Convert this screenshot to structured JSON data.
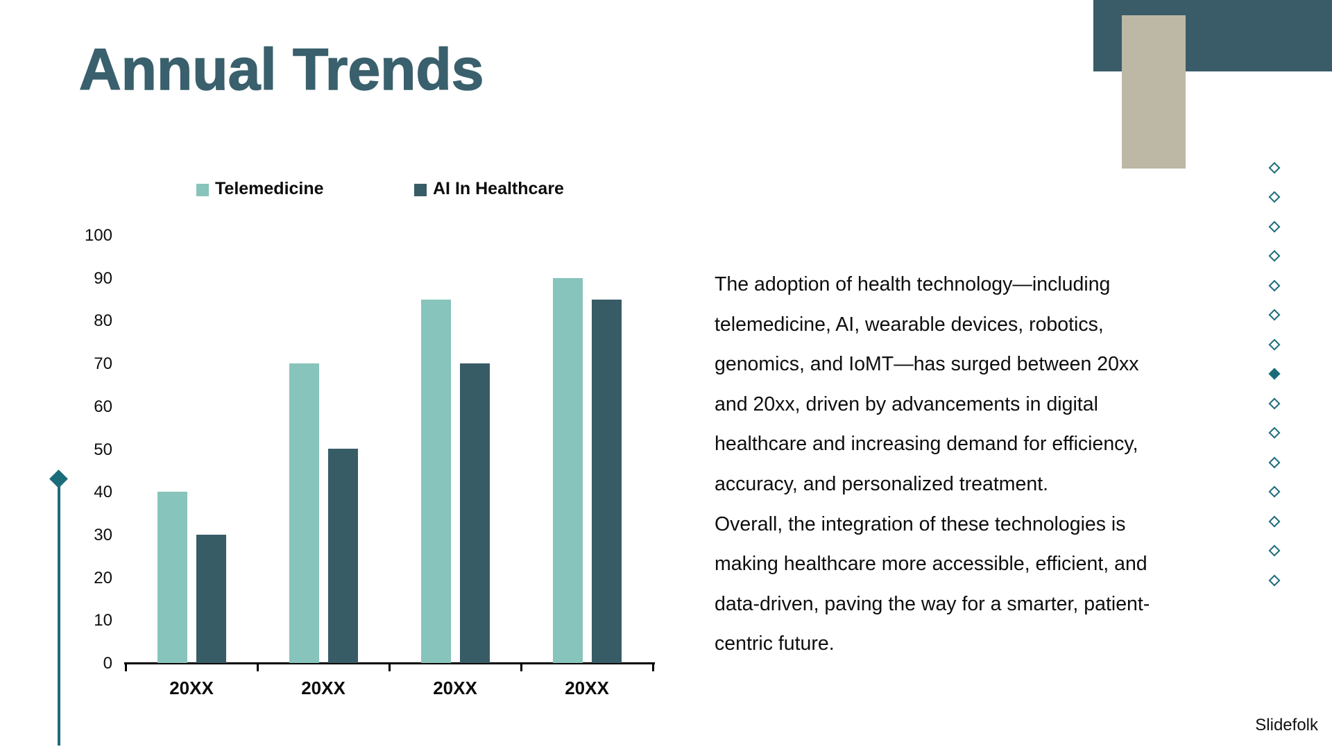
{
  "slide": {
    "title": "Annual Trends",
    "watermark": "Slidefolk"
  },
  "colors": {
    "title": "#39606C",
    "header_block": "#3A5B68",
    "beige_block": "#BCB8A5",
    "accent": "#1B6C7A",
    "text": "#0E0E0E",
    "axis": "#000000"
  },
  "chart_data": {
    "type": "bar",
    "title": "",
    "xlabel": "",
    "ylabel": "",
    "categories": [
      "20XX",
      "20XX",
      "20XX",
      "20XX"
    ],
    "series": [
      {
        "name": "Telemedicine",
        "color": "#87C4BB",
        "values": [
          40,
          70,
          85,
          90
        ]
      },
      {
        "name": "AI In Healthcare",
        "color": "#375C66",
        "values": [
          30,
          50,
          70,
          85
        ]
      }
    ],
    "ylim": [
      0,
      100
    ],
    "ytick_step": 10,
    "grid": false,
    "legend_position": "top"
  },
  "text_block": {
    "lines": [
      "The adoption of health technology—including",
      "telemedicine, AI, wearable devices, robotics,",
      "genomics, and IoMT—has surged between 20xx",
      "and 20xx, driven by advancements in digital",
      "healthcare and increasing demand for efficiency,",
      "accuracy, and personalized treatment.",
      "Overall, the integration of these technologies is",
      "making healthcare more accessible, efficient, and",
      "data-driven, paving the way for a smarter, patient-",
      "centric future."
    ]
  },
  "decor": {
    "right_diamond_count": 15,
    "right_diamond_filled_index": 7
  }
}
